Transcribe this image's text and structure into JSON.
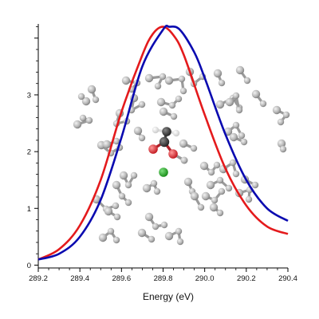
{
  "chart_data": {
    "type": "line",
    "title": "",
    "xlabel": "Energy (eV)",
    "ylabel": "",
    "xlim": [
      289.2,
      290.4
    ],
    "ylim": [
      -0.05,
      4.25
    ],
    "x_ticks": [
      289.2,
      289.4,
      289.6,
      289.8,
      290.0,
      290.2,
      290.4
    ],
    "x_tick_labels": [
      "289.2",
      "289.4",
      "289.6",
      "289.8",
      "290.0",
      "290.2",
      "290.4"
    ],
    "y_ticks": [
      0,
      1,
      2,
      3,
      4
    ],
    "y_tick_labels": [
      "0",
      "1",
      "2",
      "3",
      ""
    ],
    "grid": false,
    "legend": "none",
    "series": [
      {
        "color": "#e41a1c",
        "x": [
          289.2,
          289.3,
          289.4,
          289.5,
          289.6,
          289.7,
          289.75,
          289.8,
          289.85,
          289.9,
          290.0,
          290.1,
          290.2,
          290.3,
          290.4
        ],
        "y": [
          0.1,
          0.28,
          0.7,
          1.5,
          2.7,
          3.7,
          4.07,
          4.2,
          4.05,
          3.7,
          2.65,
          1.7,
          1.05,
          0.68,
          0.55
        ]
      },
      {
        "color": "#0a0ab0",
        "x": [
          289.2,
          289.3,
          289.4,
          289.5,
          289.6,
          289.7,
          289.8,
          289.83,
          289.88,
          289.95,
          290.0,
          290.1,
          290.2,
          290.3,
          290.4
        ],
        "y": [
          0.1,
          0.2,
          0.5,
          1.15,
          2.25,
          3.5,
          4.15,
          4.2,
          4.15,
          3.75,
          3.3,
          2.3,
          1.5,
          1.0,
          0.78
        ]
      }
    ],
    "inset_image": {
      "type": "molecular-structure",
      "description": "ball-and-stick molecular cluster overlaid on plot",
      "atom_colors": {
        "carbon_dark": "#303030",
        "oxygen": "#e8323a",
        "hydrogen": "#f4f4f4",
        "chlorine": "#22a02a",
        "solvent": "#b8b8b8"
      }
    }
  }
}
